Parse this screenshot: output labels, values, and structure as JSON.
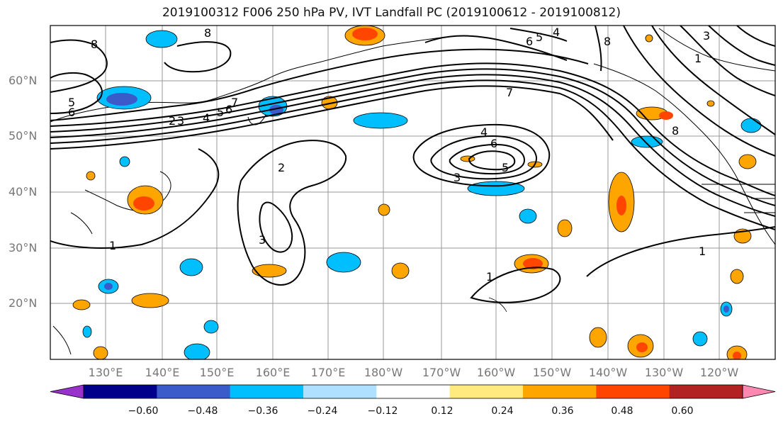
{
  "title": "2019100312 F006 250 hPa PV, IVT Landfall PC (2019100612 - 2019100812)",
  "lat_labels": [
    {
      "text": "60°N"
    },
    {
      "text": "50°N"
    },
    {
      "text": "40°N"
    },
    {
      "text": "30°N"
    },
    {
      "text": "20°N"
    }
  ],
  "lon_labels": [
    {
      "text": "130°E"
    },
    {
      "text": "140°E"
    },
    {
      "text": "150°E"
    },
    {
      "text": "160°E"
    },
    {
      "text": "170°E"
    },
    {
      "text": "180°W"
    },
    {
      "text": "170°W"
    },
    {
      "text": "160°W"
    },
    {
      "text": "150°W"
    },
    {
      "text": "140°W"
    },
    {
      "text": "130°W"
    },
    {
      "text": "120°W"
    }
  ],
  "colorbar": {
    "colors": [
      "#9932CC",
      "#00008B",
      "#3A5BC9",
      "#00BFFF",
      "#B0E0FF",
      "#FFFFFF",
      "#FFEA80",
      "#FFA500",
      "#FF4500",
      "#B22222",
      "#FF88B0"
    ],
    "ticks": [
      "−0.60",
      "−0.48",
      "−0.36",
      "−0.24",
      "−0.12",
      "0.12",
      "0.24",
      "0.36",
      "0.48",
      "0.60"
    ]
  },
  "contour_labels": [
    "8",
    "8",
    "8",
    "5",
    "6",
    "4",
    "5",
    "6",
    "7",
    "2",
    "3",
    "4",
    "6",
    "5",
    "3",
    "1",
    "1",
    "1",
    "2",
    "3",
    "4",
    "5",
    "6",
    "7",
    "8",
    "1",
    "3"
  ]
}
